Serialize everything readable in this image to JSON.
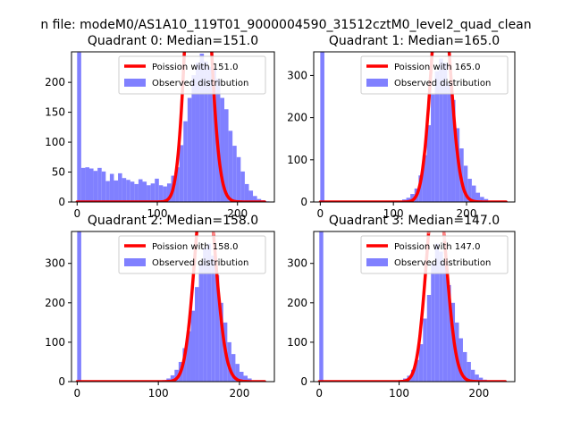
{
  "suptitle": "n file: modeM0/AS1A10_119T01_9000004590_31512cztM0_level2_quad_clean",
  "chart_data": [
    {
      "type": "bar",
      "title": "Quadrant 0: Median=151.0",
      "xlim": [
        -7,
        246
      ],
      "ylim": [
        0,
        251
      ],
      "xticks": [
        0,
        100,
        200
      ],
      "yticks": [
        0,
        50,
        100,
        150,
        200
      ],
      "bin_width": 5.1,
      "bins_start": [
        0,
        5.1,
        10.2,
        15.3,
        20.4,
        25.5,
        30.6,
        35.7,
        40.8,
        45.9,
        51,
        56.1,
        61.2,
        66.3,
        71.4,
        76.5,
        81.6,
        86.7,
        91.8,
        96.9,
        102,
        107.1,
        112.2,
        117.3,
        122.4,
        127.5,
        132.6,
        137.7,
        142.8,
        147.9,
        153,
        158.1,
        163.2,
        168.3,
        173.4,
        178.5,
        183.6,
        188.7,
        193.8,
        198.9,
        204,
        209.1,
        214.2,
        219.3,
        224.4,
        229.5,
        234.6
      ],
      "counts": [
        250,
        57,
        58,
        56,
        52,
        57,
        51,
        35,
        47,
        36,
        48,
        40,
        37,
        34,
        30,
        38,
        34,
        28,
        31,
        39,
        28,
        26,
        31,
        44,
        58,
        95,
        135,
        174,
        212,
        233,
        248,
        235,
        226,
        223,
        206,
        174,
        155,
        119,
        94,
        75,
        51,
        30,
        19,
        10,
        5,
        3,
        1
      ],
      "poisson_mean": 151.0,
      "legend": [
        "Poission with 151.0",
        "Observed distribution"
      ]
    },
    {
      "type": "bar",
      "title": "Quadrant 1: Median=165.0",
      "xlim": [
        -9,
        266
      ],
      "ylim": [
        0,
        356
      ],
      "xticks": [
        0,
        100,
        200
      ],
      "yticks": [
        0,
        100,
        200,
        300
      ],
      "bin_width": 5.6,
      "bins_start": [
        0,
        5.6,
        95.2,
        100.8,
        106.4,
        112,
        117.6,
        123.2,
        128.8,
        134.4,
        140,
        145.6,
        151.2,
        156.8,
        162.4,
        168,
        173.6,
        179.2,
        184.8,
        190.4,
        196,
        201.6,
        207.2,
        212.8,
        218.4,
        224,
        229.6,
        235.2,
        240.8
      ],
      "counts": [
        356,
        1,
        1,
        2,
        3,
        6,
        10,
        19,
        32,
        63,
        111,
        182,
        255,
        310,
        340,
        330,
        283,
        242,
        175,
        127,
        86,
        55,
        39,
        22,
        12,
        7,
        3,
        1,
        1
      ],
      "poisson_mean": 165.0,
      "legend": [
        "Poission with 165.0",
        "Observed distribution"
      ]
    },
    {
      "type": "bar",
      "title": "Quadrant 2: Median=158.0",
      "xlim": [
        -7,
        243
      ],
      "ylim": [
        0,
        381
      ],
      "xticks": [
        0,
        100,
        200
      ],
      "yticks": [
        0,
        100,
        200,
        300
      ],
      "bin_width": 5,
      "bins_start": [
        0,
        5,
        95,
        100,
        105,
        110,
        115,
        120,
        125,
        130,
        135,
        140,
        145,
        150,
        155,
        160,
        165,
        170,
        175,
        180,
        185,
        190,
        195,
        200,
        205,
        210,
        215,
        220,
        225
      ],
      "counts": [
        381,
        1,
        1,
        2,
        4,
        8,
        16,
        30,
        50,
        85,
        128,
        180,
        240,
        300,
        340,
        350,
        320,
        270,
        200,
        150,
        100,
        70,
        45,
        25,
        15,
        8,
        3,
        2,
        1
      ],
      "poisson_mean": 158.0,
      "legend": [
        "Poission with 158.0",
        "Observed distribution"
      ]
    },
    {
      "type": "bar",
      "title": "Quadrant 3: Median=147.0",
      "xlim": [
        -7,
        245
      ],
      "ylim": [
        0,
        381
      ],
      "xticks": [
        0,
        100,
        200
      ],
      "yticks": [
        0,
        100,
        200,
        300
      ],
      "bin_width": 5,
      "bins_start": [
        0,
        5,
        90,
        95,
        100,
        105,
        110,
        115,
        120,
        125,
        130,
        135,
        140,
        145,
        150,
        155,
        160,
        165,
        170,
        175,
        180,
        185,
        190,
        195,
        200,
        205,
        210,
        215,
        220,
        225
      ],
      "counts": [
        381,
        1,
        1,
        2,
        4,
        8,
        15,
        30,
        55,
        95,
        160,
        220,
        300,
        350,
        330,
        300,
        245,
        200,
        150,
        110,
        75,
        50,
        30,
        18,
        10,
        5,
        3,
        2,
        1,
        1
      ],
      "poisson_mean": 147.0,
      "legend": [
        "Poission with 147.0",
        "Observed distribution"
      ]
    }
  ],
  "colors": {
    "hist": "#8080ff",
    "poisson": "#ff0000",
    "poisson_light": "#ff9a9a"
  }
}
